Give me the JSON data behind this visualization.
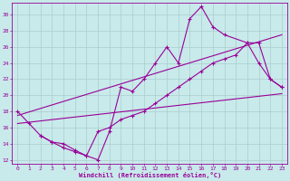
{
  "xlabel": "Windchill (Refroidissement éolien,°C)",
  "bg_color": "#c8eaea",
  "line_color": "#990099",
  "grid_color": "#aacccc",
  "xlim": [
    -0.5,
    23.5
  ],
  "ylim": [
    11.5,
    31.5
  ],
  "xticks": [
    0,
    1,
    2,
    3,
    4,
    5,
    6,
    7,
    8,
    9,
    10,
    11,
    12,
    13,
    14,
    15,
    16,
    17,
    18,
    19,
    20,
    21,
    22,
    23
  ],
  "yticks": [
    12,
    14,
    16,
    18,
    20,
    22,
    24,
    26,
    28,
    30
  ],
  "series": [
    {
      "x": [
        0,
        1,
        2,
        3,
        4,
        5,
        6,
        7,
        8,
        9,
        10,
        11,
        12,
        13,
        14,
        15,
        16,
        17,
        18,
        20,
        21,
        22,
        23
      ],
      "y": [
        18,
        16.5,
        15,
        14.2,
        13.5,
        13,
        12.5,
        12,
        15.5,
        21,
        20.5,
        22,
        24,
        26,
        24,
        29.5,
        31,
        28.5,
        27.5,
        26.5,
        24,
        22,
        21
      ]
    },
    {
      "x": [
        2,
        3,
        4,
        5,
        6,
        7,
        8,
        9,
        10,
        11,
        12,
        13,
        14,
        15,
        16,
        17,
        18,
        19,
        20,
        21,
        22,
        23
      ],
      "y": [
        15,
        14.2,
        14,
        13.2,
        12.5,
        15.5,
        16,
        17,
        17.5,
        18,
        19,
        20,
        21,
        22,
        23,
        24,
        24.5,
        25,
        26.5,
        26.5,
        22,
        21
      ]
    },
    {
      "x": [
        0,
        23
      ],
      "y": [
        16.5,
        20.2
      ]
    },
    {
      "x": [
        0,
        23
      ],
      "y": [
        17.5,
        27.5
      ]
    }
  ]
}
